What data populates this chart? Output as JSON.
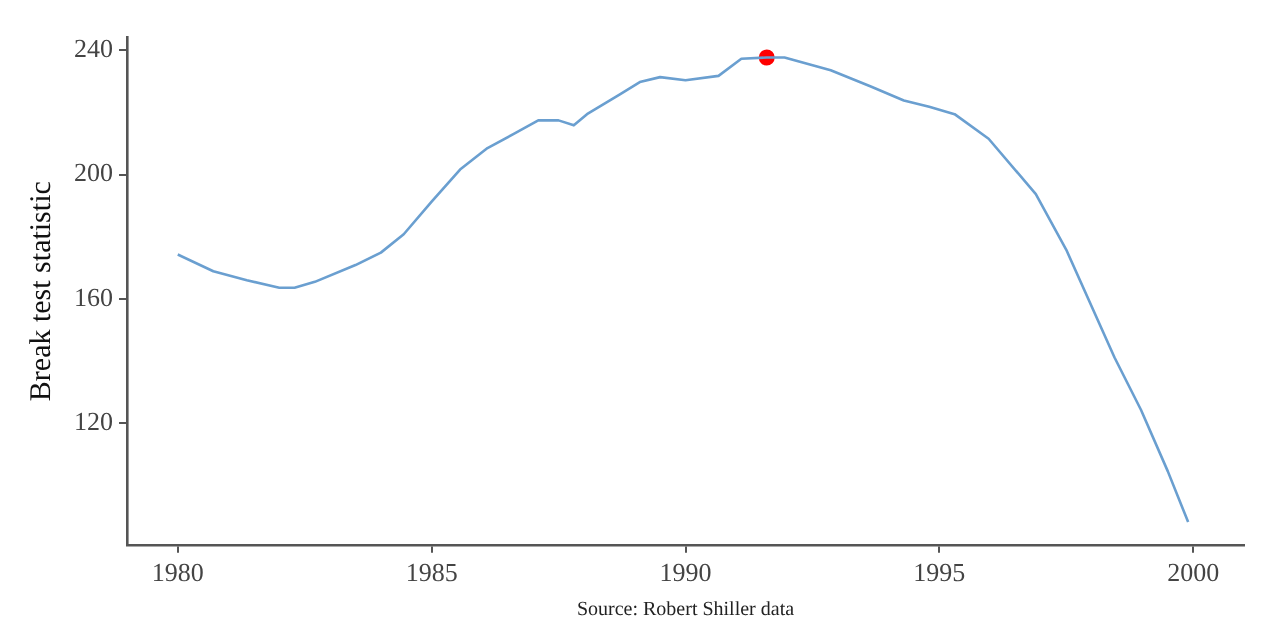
{
  "chart_data": {
    "type": "line",
    "ylabel": "Break test statistic",
    "annotations": [
      "Source: Robert Shiller data"
    ],
    "xlim": [
      1979,
      2001
    ],
    "xticks": [
      1980,
      1985,
      1990,
      1995,
      2000
    ],
    "ylim": [
      81,
      244
    ],
    "yticks": [
      120,
      160,
      200,
      240
    ],
    "grid": false,
    "legend": false,
    "series": [
      {
        "type": "line",
        "color": "#6a9fd0",
        "marker": "none",
        "x": [
          1980,
          1980.7,
          1981.36,
          1982.0,
          1982.3,
          1982.7,
          1983.5,
          1984.0,
          1984.45,
          1985,
          1985.56,
          1986.1,
          1986.6,
          1987.1,
          1987.5,
          1987.8,
          1988.06,
          1988.7,
          1989.1,
          1989.5,
          1990,
          1990.65,
          1991.1,
          1991.6,
          1991.95,
          1992.86,
          1993.65,
          1994.3,
          1994.8,
          1995.3,
          1995.97,
          1996.9,
          1997.5,
          1998.45,
          1998.97,
          1999.5,
          1999.9
        ],
        "values": [
          174.3,
          168.9,
          166,
          163.6,
          163.6,
          165.5,
          170.9,
          174.9,
          180.8,
          191.3,
          201.6,
          208.5,
          212.9,
          217.4,
          217.4,
          215.8,
          219.4,
          225.7,
          229.7,
          231.3,
          230.3,
          231.7,
          237.2,
          237.6,
          237.6,
          233.5,
          228.3,
          223.8,
          221.8,
          219.4,
          211.5,
          193.7,
          175.8,
          141.2,
          124.4,
          104.6,
          88.3
        ]
      },
      {
        "type": "scatter",
        "color": "#ff0000",
        "marker": "circle",
        "x": [
          1991.6
        ],
        "values": [
          237.6
        ]
      }
    ]
  }
}
